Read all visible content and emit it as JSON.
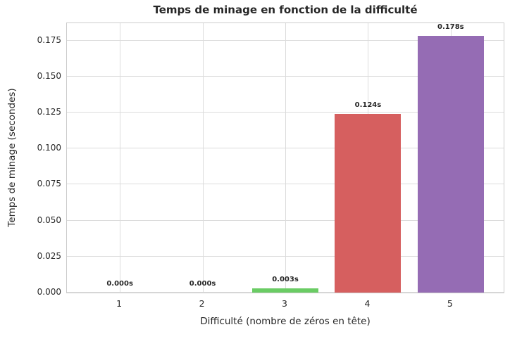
{
  "chart_data": {
    "type": "bar",
    "title": "Temps de minage en fonction de la difficulté",
    "xlabel": "Difficulté (nombre de zéros en tête)",
    "ylabel": "Temps de minage (secondes)",
    "categories": [
      "1",
      "2",
      "3",
      "4",
      "5"
    ],
    "values": [
      0.0,
      0.0,
      0.003,
      0.124,
      0.178
    ],
    "bar_labels": [
      "0.000s",
      "0.000s",
      "0.003s",
      "0.124s",
      "0.178s"
    ],
    "bar_colors": [
      "#4878d0",
      "#ee854a",
      "#6acc64",
      "#d65f5f",
      "#956cb4"
    ],
    "bar_width": 0.8,
    "yticks": [
      0.0,
      0.025,
      0.05,
      0.075,
      0.1,
      0.125,
      0.15,
      0.175
    ],
    "ytick_labels": [
      "0.000",
      "0.025",
      "0.050",
      "0.075",
      "0.100",
      "0.125",
      "0.150",
      "0.175"
    ],
    "xlim": [
      -0.64,
      4.64
    ],
    "ylim": [
      0,
      0.187
    ],
    "grid": true,
    "legend": "none",
    "colors": {
      "grid": "#dcdcdc",
      "spine": "#cccccc",
      "text": "#262626",
      "background": "#ffffff"
    }
  }
}
